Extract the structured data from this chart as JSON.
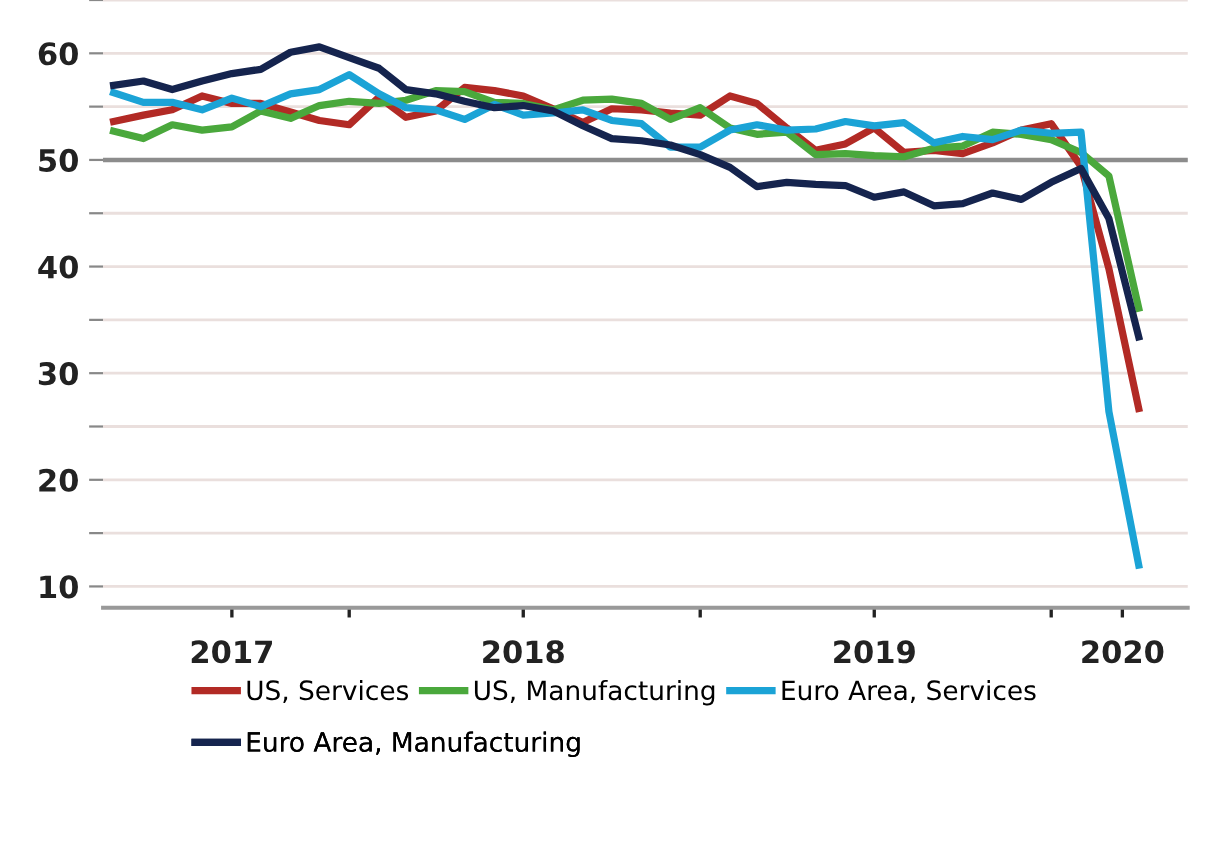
{
  "chart_data": {
    "type": "line",
    "x": [
      "2017-05",
      "2017-06",
      "2017-07",
      "2017-08",
      "2017-09",
      "2017-10",
      "2017-11",
      "2017-12",
      "2018-01",
      "2018-02",
      "2018-03",
      "2018-04",
      "2018-05",
      "2018-06",
      "2018-07",
      "2018-08",
      "2018-09",
      "2018-10",
      "2018-11",
      "2018-12",
      "2019-01",
      "2019-02",
      "2019-03",
      "2019-04",
      "2019-05",
      "2019-06",
      "2019-07",
      "2019-08",
      "2019-09",
      "2019-10",
      "2019-11",
      "2019-12",
      "2020-01",
      "2020-02",
      "2020-03",
      "2020-04"
    ],
    "series": [
      {
        "name": "US, Services",
        "color": "#b22a25",
        "values": [
          53.6,
          54.2,
          54.7,
          56.0,
          55.3,
          55.3,
          54.5,
          53.7,
          53.3,
          55.9,
          54.0,
          54.6,
          56.8,
          56.5,
          56.0,
          54.8,
          53.5,
          54.8,
          54.7,
          54.4,
          54.2,
          56.0,
          55.3,
          53.0,
          50.9,
          51.5,
          53.0,
          50.7,
          50.9,
          50.6,
          51.6,
          52.8,
          53.4,
          49.4,
          39.8,
          26.7
        ]
      },
      {
        "name": "US, Manufacturing",
        "color": "#4aa83c",
        "values": [
          52.7,
          52.0,
          53.3,
          52.8,
          53.1,
          54.6,
          53.9,
          55.1,
          55.5,
          55.3,
          55.6,
          56.5,
          56.4,
          55.4,
          55.3,
          54.7,
          55.6,
          55.7,
          55.3,
          53.8,
          54.9,
          53.0,
          52.4,
          52.6,
          50.5,
          50.6,
          50.4,
          50.3,
          51.1,
          51.3,
          52.6,
          52.4,
          51.9,
          50.7,
          48.5,
          36.1
        ]
      },
      {
        "name": "Euro Area, Services",
        "color": "#1ba3d6",
        "values": [
          56.3,
          55.4,
          55.4,
          54.7,
          55.8,
          55.0,
          56.2,
          56.6,
          58.0,
          56.2,
          54.9,
          54.7,
          53.8,
          55.2,
          54.2,
          54.4,
          54.7,
          53.7,
          53.4,
          51.2,
          51.2,
          52.8,
          53.3,
          52.8,
          52.9,
          53.6,
          53.2,
          53.5,
          51.6,
          52.2,
          51.9,
          52.8,
          52.5,
          52.6,
          26.4,
          12.0
        ]
      },
      {
        "name": "Euro Area, Manufacturing",
        "color": "#15244e",
        "values": [
          57.0,
          57.4,
          56.6,
          57.4,
          58.1,
          58.5,
          60.1,
          60.6,
          59.6,
          58.6,
          56.6,
          56.2,
          55.5,
          54.9,
          55.1,
          54.6,
          53.2,
          52.0,
          51.8,
          51.4,
          50.5,
          49.3,
          47.5,
          47.9,
          47.7,
          47.6,
          46.5,
          47.0,
          45.7,
          45.9,
          46.9,
          46.3,
          47.9,
          49.2,
          44.5,
          33.4
        ]
      }
    ],
    "xlim": [
      "2017-04-20",
      "2020-05-22"
    ],
    "xticks": [
      {
        "value": "2017-09-01",
        "label": "2017"
      },
      {
        "value": "2018-01-01",
        "label": null
      },
      {
        "value": "2018-07-01",
        "label": "2018"
      },
      {
        "value": "2019-01-01",
        "label": null
      },
      {
        "value": "2019-07-01",
        "label": "2019"
      },
      {
        "value": "2020-01-01",
        "label": null
      },
      {
        "value": "2020-03-15",
        "label": "2020"
      }
    ],
    "ylim": [
      8,
      65
    ],
    "yticks": [
      10,
      {
        "value": 15,
        "label": null
      },
      20,
      {
        "value": 25,
        "label": null
      },
      30,
      {
        "value": 35,
        "label": null
      },
      40,
      {
        "value": 45,
        "label": null
      },
      50,
      {
        "value": 55,
        "label": null
      },
      60,
      {
        "value": 65,
        "label": null
      }
    ],
    "ref_lines": [
      {
        "axis": "y",
        "value": 50,
        "color": "#8c8c8c"
      }
    ],
    "grid": "y",
    "legend": "bottom",
    "marker": "none",
    "line_style": "solid"
  }
}
